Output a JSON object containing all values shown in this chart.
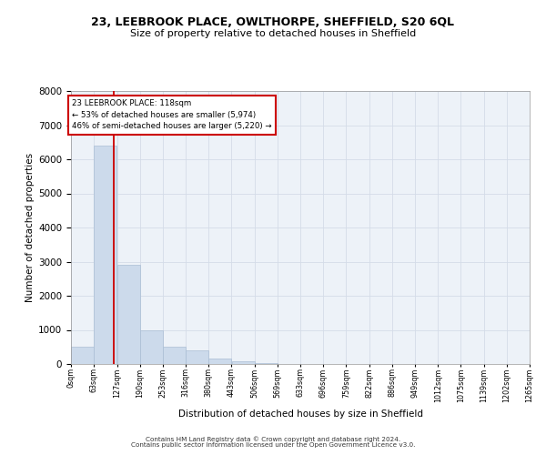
{
  "title_line1": "23, LEEBROOK PLACE, OWLTHORPE, SHEFFIELD, S20 6QL",
  "title_line2": "Size of property relative to detached houses in Sheffield",
  "xlabel": "Distribution of detached houses by size in Sheffield",
  "ylabel": "Number of detached properties",
  "annotation_line1": "23 LEEBROOK PLACE: 118sqm",
  "annotation_line2": "← 53% of detached houses are smaller (5,974)",
  "annotation_line3": "46% of semi-detached houses are larger (5,220) →",
  "footer_line1": "Contains HM Land Registry data © Crown copyright and database right 2024.",
  "footer_line2": "Contains public sector information licensed under the Open Government Licence v3.0.",
  "bar_color": "#ccdaeb",
  "bar_edge_color": "#aabdd4",
  "grid_color": "#d4dce8",
  "property_line_color": "#cc0000",
  "annotation_box_color": "#cc0000",
  "background_color": "#edf2f8",
  "bin_labels": [
    "0sqm",
    "63sqm",
    "127sqm",
    "190sqm",
    "253sqm",
    "316sqm",
    "380sqm",
    "443sqm",
    "506sqm",
    "569sqm",
    "633sqm",
    "696sqm",
    "759sqm",
    "822sqm",
    "886sqm",
    "949sqm",
    "1012sqm",
    "1075sqm",
    "1139sqm",
    "1202sqm",
    "1265sqm"
  ],
  "bar_values": [
    500,
    6400,
    2900,
    1000,
    500,
    400,
    150,
    75,
    30,
    0,
    0,
    0,
    0,
    0,
    0,
    0,
    0,
    0,
    0,
    0
  ],
  "bin_edges": [
    0,
    63,
    127,
    190,
    253,
    316,
    380,
    443,
    506,
    569,
    633,
    696,
    759,
    822,
    886,
    949,
    1012,
    1075,
    1139,
    1202,
    1265
  ],
  "property_size": 118,
  "ylim": [
    0,
    8000
  ],
  "yticks": [
    0,
    1000,
    2000,
    3000,
    4000,
    5000,
    6000,
    7000,
    8000
  ]
}
